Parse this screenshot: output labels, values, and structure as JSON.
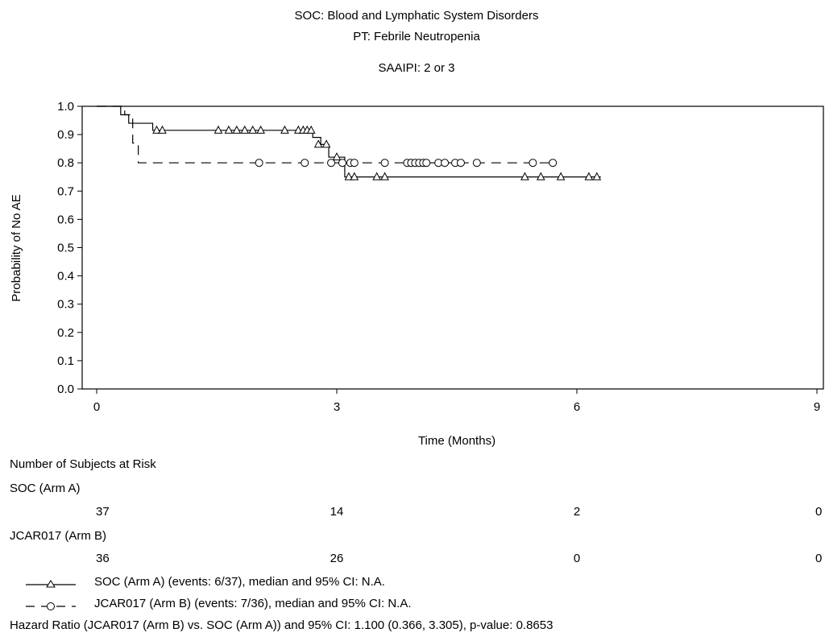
{
  "header": {
    "soc": "SOC: Blood and Lymphatic System Disorders",
    "pt": "PT: Febrile Neutropenia",
    "subgroup": "SAAIPI: 2 or 3"
  },
  "chart_data": {
    "type": "line",
    "subtype": "kaplan-meier",
    "xlabel": "Time (Months)",
    "ylabel": "Probability of No AE",
    "xlim": [
      0,
      9
    ],
    "ylim": [
      0,
      1
    ],
    "xticks": [
      0,
      3,
      6,
      9
    ],
    "yticks": [
      0.0,
      0.1,
      0.2,
      0.3,
      0.4,
      0.5,
      0.6,
      0.7,
      0.8,
      0.9,
      1.0
    ],
    "grid": false,
    "series": [
      {
        "name": "SOC (Arm A)",
        "color": "#000000",
        "line": "solid",
        "marker": "triangle",
        "steps": [
          [
            0,
            1.0
          ],
          [
            0.3,
            0.97
          ],
          [
            0.4,
            0.94
          ],
          [
            0.7,
            0.915
          ],
          [
            2.7,
            0.89
          ],
          [
            2.8,
            0.865
          ],
          [
            2.9,
            0.82
          ],
          [
            3.1,
            0.75
          ],
          [
            6.3,
            0.75
          ]
        ],
        "censored": [
          [
            0.75,
            0.915
          ],
          [
            0.82,
            0.915
          ],
          [
            1.52,
            0.915
          ],
          [
            1.65,
            0.915
          ],
          [
            1.75,
            0.915
          ],
          [
            1.85,
            0.915
          ],
          [
            1.95,
            0.915
          ],
          [
            2.05,
            0.915
          ],
          [
            2.35,
            0.915
          ],
          [
            2.52,
            0.915
          ],
          [
            2.58,
            0.915
          ],
          [
            2.63,
            0.915
          ],
          [
            2.68,
            0.915
          ],
          [
            2.77,
            0.865
          ],
          [
            2.87,
            0.865
          ],
          [
            3.0,
            0.82
          ],
          [
            3.15,
            0.75
          ],
          [
            3.22,
            0.75
          ],
          [
            3.5,
            0.75
          ],
          [
            3.6,
            0.75
          ],
          [
            5.35,
            0.75
          ],
          [
            5.55,
            0.75
          ],
          [
            5.8,
            0.75
          ],
          [
            6.15,
            0.75
          ],
          [
            6.25,
            0.75
          ]
        ]
      },
      {
        "name": "JCAR017 (Arm B)",
        "color": "#000000",
        "line": "dashed",
        "marker": "circle",
        "steps": [
          [
            0,
            1.0
          ],
          [
            0.35,
            0.97
          ],
          [
            0.45,
            0.87
          ],
          [
            0.52,
            0.8
          ],
          [
            5.7,
            0.8
          ]
        ],
        "censored": [
          [
            2.03,
            0.8
          ],
          [
            2.6,
            0.8
          ],
          [
            2.93,
            0.8
          ],
          [
            3.07,
            0.8
          ],
          [
            3.17,
            0.8
          ],
          [
            3.22,
            0.8
          ],
          [
            3.6,
            0.8
          ],
          [
            3.88,
            0.8
          ],
          [
            3.93,
            0.8
          ],
          [
            3.98,
            0.8
          ],
          [
            4.03,
            0.8
          ],
          [
            4.08,
            0.8
          ],
          [
            4.12,
            0.8
          ],
          [
            4.27,
            0.8
          ],
          [
            4.35,
            0.8
          ],
          [
            4.48,
            0.8
          ],
          [
            4.55,
            0.8
          ],
          [
            4.75,
            0.8
          ],
          [
            5.45,
            0.8
          ],
          [
            5.7,
            0.8
          ]
        ]
      }
    ]
  },
  "risk_table": {
    "title": "Number of Subjects at Risk",
    "times": [
      0,
      3,
      6,
      9
    ],
    "arms": [
      {
        "label": "SOC (Arm A)",
        "counts": [
          "37",
          "14",
          "2",
          "0"
        ]
      },
      {
        "label": "JCAR017 (Arm B)",
        "counts": [
          "36",
          "26",
          "0",
          "0"
        ]
      }
    ]
  },
  "legend": [
    {
      "text": "SOC (Arm A) (events: 6/37), median and 95% CI: N.A."
    },
    {
      "text": "JCAR017 (Arm B) (events: 7/36), median and 95% CI: N.A."
    }
  ],
  "footer": {
    "hazard": "Hazard Ratio (JCAR017 (Arm B) vs. SOC (Arm A)) and 95% CI: 1.100 (0.366, 3.305), p-value: 0.8653"
  }
}
